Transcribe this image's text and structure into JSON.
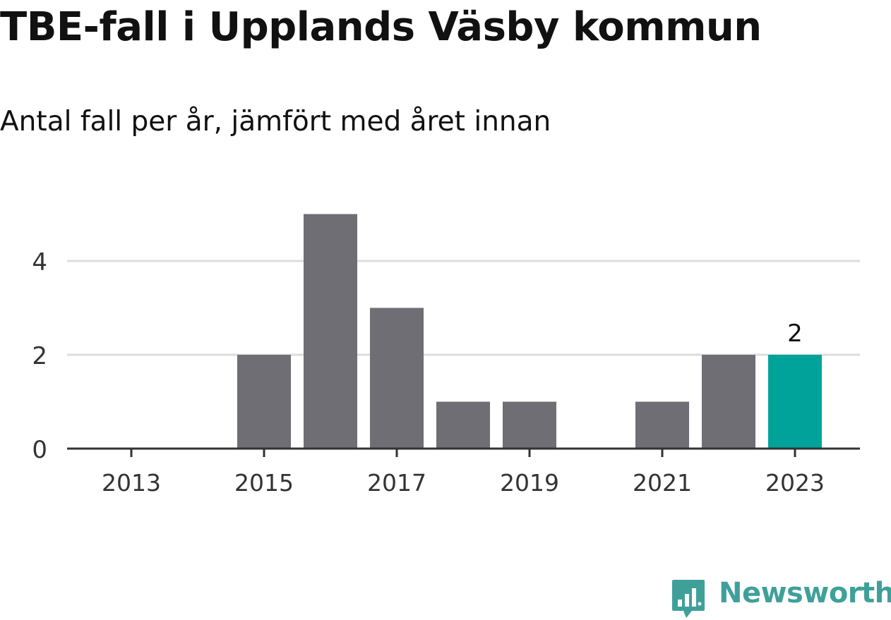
{
  "chart_data": {
    "type": "bar",
    "title": "TBE-fall i Upplands Väsby kommun",
    "subtitle": "Antal fall per år, jämfört med året innan",
    "xlabel": "",
    "ylabel": "",
    "categories": [
      "2013",
      "2014",
      "2015",
      "2016",
      "2017",
      "2018",
      "2019",
      "2020",
      "2021",
      "2022",
      "2023"
    ],
    "x_tick_labels": [
      "2013",
      "2015",
      "2017",
      "2019",
      "2021",
      "2023"
    ],
    "values": [
      0,
      0,
      2,
      5,
      3,
      1,
      1,
      0,
      1,
      2,
      2
    ],
    "y_ticks": [
      0,
      2,
      4
    ],
    "ylim": [
      0,
      5
    ],
    "grid": true,
    "highlight_index": 10,
    "highlight_label": "2",
    "colors": {
      "bar": "#6f6e74",
      "highlight": "#00a39a",
      "grid": "#dddddd",
      "axis": "#333333"
    }
  },
  "branding": {
    "logo_text": "Newsworthy",
    "logo_color": "#3fa09a"
  }
}
